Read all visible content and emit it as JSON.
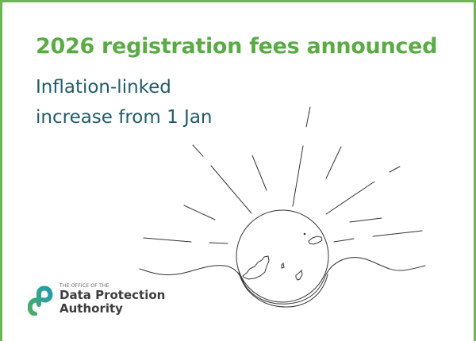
{
  "card": {
    "title": "2026 registration fees announced",
    "subtitle_line1": "Inflation-linked",
    "subtitle_line2": "increase from 1 Jan"
  },
  "logo": {
    "small_text": "THE OFFICE OF THE",
    "line1": "Data Protection",
    "line2": "Authority"
  },
  "colors": {
    "border": "#6db552",
    "title": "#5aab45",
    "subtitle": "#235b6a"
  }
}
